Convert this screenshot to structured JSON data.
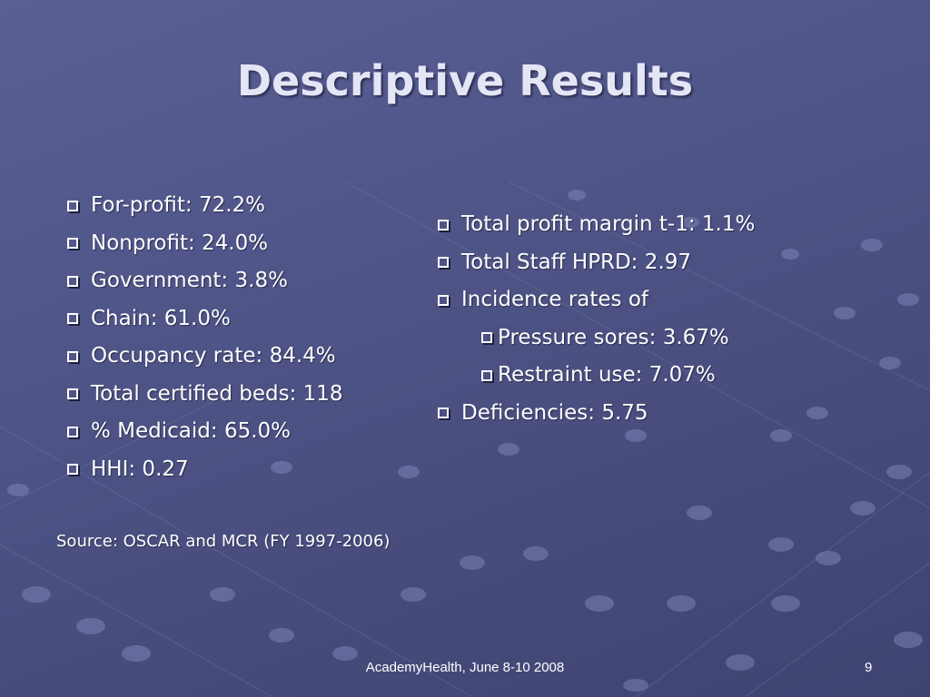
{
  "title": "Descriptive Results",
  "left_items": [
    "For-profit: 72.2%",
    "Nonprofit: 24.0%",
    "Government: 3.8%",
    "Chain: 61.0%",
    "Occupancy rate: 84.4%",
    "Total certified beds: 118",
    "% Medicaid: 65.0%",
    "HHI: 0.27"
  ],
  "right_items": [
    "Total profit margin t-1: 1.1%",
    "Total Staff HPRD: 2.97",
    "Incidence rates of",
    "Pressure sores: 3.67%",
    "Restraint use: 7.07%",
    "Deficiencies: 5.75"
  ],
  "source": "Source: OSCAR and MCR (FY 1997-2006)",
  "footer": "AcademyHealth, June 8-10 2008",
  "page_number": "9",
  "colors": {
    "background": "#52578a",
    "title": "#e4e6f6",
    "text": "#ffffff"
  }
}
